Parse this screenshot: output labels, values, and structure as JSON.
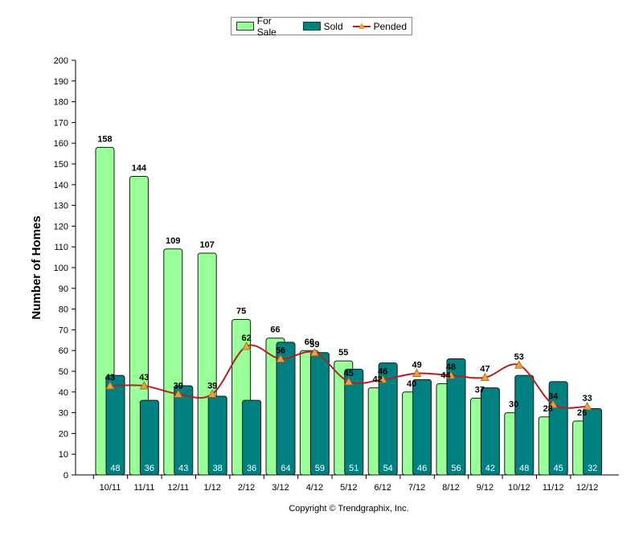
{
  "legend": {
    "for_sale": "For Sale",
    "sold": "Sold",
    "pended": "Pended"
  },
  "copyright": "Copyright © Trendgraphix, Inc.",
  "colors": {
    "for_sale": "#99ff99",
    "sold": "#008080",
    "pended": "#b22222",
    "marker": "#e8a33d"
  },
  "chart_data": {
    "type": "bar",
    "categories": [
      "10/11",
      "11/11",
      "12/11",
      "1/12",
      "2/12",
      "3/12",
      "4/12",
      "5/12",
      "6/12",
      "7/12",
      "8/12",
      "9/12",
      "10/12",
      "11/12",
      "12/12"
    ],
    "series": [
      {
        "name": "For Sale",
        "type": "bar",
        "values": [
          158,
          144,
          109,
          107,
          75,
          66,
          60,
          55,
          42,
          40,
          44,
          37,
          30,
          28,
          26
        ]
      },
      {
        "name": "Sold",
        "type": "bar",
        "values": [
          48,
          36,
          43,
          38,
          36,
          64,
          59,
          51,
          54,
          46,
          56,
          42,
          48,
          45,
          32
        ]
      },
      {
        "name": "Pended",
        "type": "line",
        "values": [
          43,
          43,
          39,
          39,
          62,
          56,
          59,
          45,
          46,
          49,
          48,
          47,
          53,
          34,
          33
        ]
      }
    ],
    "ylabel": "Number of Homes",
    "xlabel": "",
    "ylim": [
      0,
      200
    ],
    "yticks": [
      0,
      10,
      20,
      30,
      40,
      50,
      60,
      70,
      80,
      90,
      100,
      110,
      120,
      130,
      140,
      150,
      160,
      170,
      180,
      190,
      200
    ],
    "legend_position": "top-center",
    "grid": false
  }
}
